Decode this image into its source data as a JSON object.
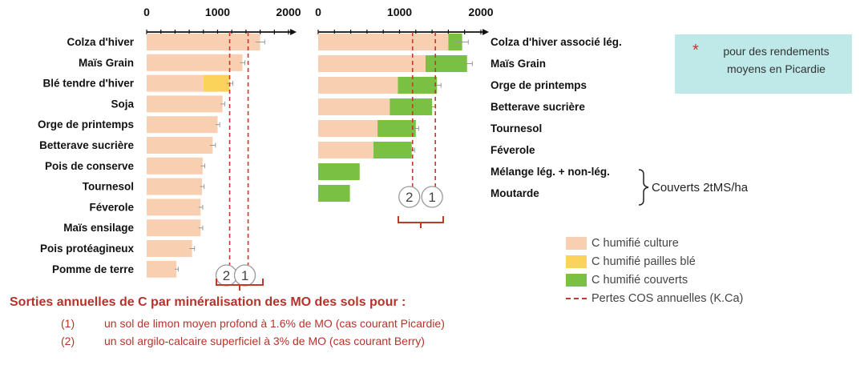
{
  "colors": {
    "culture": "#f9cfb1",
    "pailles": "#fbd35a",
    "couverts": "#7ac143",
    "pertes": "#c0392b",
    "box": "#bfe9e8",
    "footnote": "#b5332b"
  },
  "chart_data": [
    {
      "type": "bar",
      "orientation": "horizontal",
      "stacked": true,
      "xlim": [
        0,
        2000
      ],
      "xticks": [
        "0",
        "1000",
        "2000"
      ],
      "categories": [
        "Colza d'hiver",
        "Maïs Grain",
        "Blé tendre d'hiver",
        "Soja",
        "Orge de printemps",
        "Betterave sucrière",
        "Pois de conserve",
        "Tournesol",
        "Féverole",
        "Maïs ensilage",
        "Pois protéagineux",
        "Pomme de terre"
      ],
      "series": [
        {
          "name": "C humifié culture",
          "values": [
            1600,
            1350,
            800,
            1070,
            1000,
            930,
            790,
            780,
            760,
            760,
            640,
            420
          ]
        },
        {
          "name": "C humifié pailles blé",
          "values": [
            0,
            0,
            370,
            0,
            0,
            0,
            0,
            0,
            0,
            0,
            0,
            0
          ]
        }
      ],
      "error": [
        130,
        70,
        90,
        60,
        60,
        80,
        60,
        60,
        60,
        60,
        70,
        50
      ],
      "reference_lines": [
        {
          "label": "2",
          "x": 1170
        },
        {
          "label": "1",
          "x": 1430
        }
      ]
    },
    {
      "type": "bar",
      "orientation": "horizontal",
      "stacked": true,
      "xlim": [
        0,
        2000
      ],
      "xticks": [
        "0",
        "1000",
        "2000"
      ],
      "categories": [
        "Colza d'hiver associé lég.",
        "Maïs Grain",
        "Orge de printemps",
        "Betterave sucrière",
        "Tournesol",
        "Féverole",
        "Mélange lég. + non-lég.",
        "Moutarde"
      ],
      "series": [
        {
          "name": "C humifié culture",
          "values": [
            1600,
            1320,
            980,
            880,
            730,
            680,
            0,
            0
          ]
        },
        {
          "name": "C humifié couverts",
          "values": [
            170,
            510,
            480,
            520,
            470,
            470,
            510,
            390
          ]
        }
      ],
      "error": [
        150,
        130,
        100,
        90,
        70,
        70,
        0,
        0
      ],
      "reference_lines": [
        {
          "label": "2",
          "x": 1160
        },
        {
          "label": "1",
          "x": 1440
        }
      ]
    }
  ],
  "note": {
    "star": "*",
    "text": "pour des rendements moyens en Picardie"
  },
  "covers_label": "Couverts 2tMS/ha",
  "legend": [
    {
      "label": "C humifié culture",
      "kind": "box",
      "color": "#f9cfb1"
    },
    {
      "label": "C humifié pailles blé",
      "kind": "box",
      "color": "#fbd35a"
    },
    {
      "label": "C humifié couverts",
      "kind": "box",
      "color": "#7ac143"
    },
    {
      "label": "Pertes COS annuelles (K.Ca)",
      "kind": "dash",
      "color": "#c0392b"
    }
  ],
  "footnote": {
    "title": "Sorties annuelles de C par minéralisation des MO des sols pour :",
    "items": [
      {
        "num": "(1)",
        "text": "un sol de limon moyen profond à 1.6% de MO (cas courant Picardie)"
      },
      {
        "num": "(2)",
        "text": "un sol argilo-calcaire superficiel à 3% de MO (cas courant Berry)"
      }
    ]
  }
}
